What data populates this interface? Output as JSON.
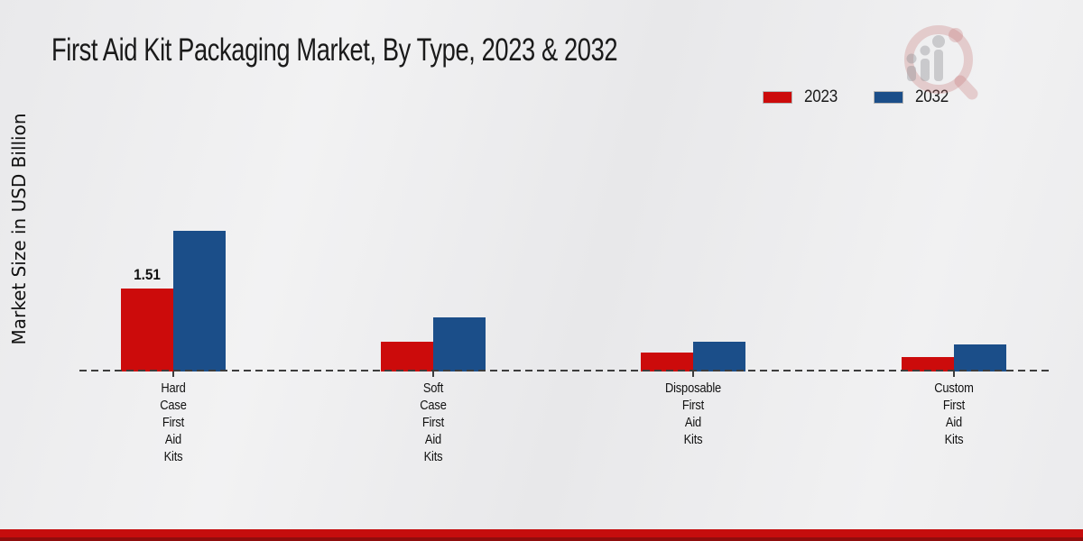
{
  "header": {
    "title": "First Aid Kit Packaging Market, By Type, 2023 & 2032"
  },
  "ylabel": "Market Size in USD Billion",
  "chart_data": {
    "type": "bar",
    "title": "First Aid Kit Packaging Market, By Type, 2023 & 2032",
    "xlabel": "",
    "ylabel": "Market Size in USD Billion",
    "categories": [
      "Hard Case First Aid Kits",
      "Soft Case First Aid Kits",
      "Disposable First Aid Kits",
      "Custom First Aid Kits"
    ],
    "series": [
      {
        "name": "2023",
        "color": "#cc0b0b",
        "values": [
          1.51,
          0.54,
          0.35,
          0.26
        ]
      },
      {
        "name": "2032",
        "color": "#1b4e89",
        "values": [
          2.57,
          0.99,
          0.55,
          0.5
        ]
      }
    ],
    "annotations": [
      {
        "series": "2023",
        "category_index": 0,
        "text": "1.51"
      }
    ],
    "ylim": [
      0,
      3
    ],
    "grid": false,
    "legend_position": "top-right",
    "baseline_style": "dashed"
  },
  "colors": {
    "series_2023": "#cc0b0b",
    "series_2032": "#1b4e89",
    "footer_band": "#c50d0d",
    "footer_band_dark": "#8f0d0d",
    "text": "#1a1a1a"
  },
  "watermark": {
    "icon": "magnifier-bar-chart-logo"
  }
}
